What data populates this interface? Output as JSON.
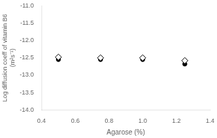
{
  "chart_data": {
    "type": "scatter",
    "title": "",
    "xlabel": "Agarose (%)",
    "ylabel": "Log diffusion coeff of vitamin B6\n(m²s⁻¹)",
    "x": [
      0.5,
      0.75,
      1.0,
      1.25
    ],
    "series": [
      {
        "color": "#000000",
        "marker": "diamond-open",
        "values": [
          -12.48,
          -12.5,
          -12.5,
          -12.58
        ]
      },
      {
        "color": "#000000",
        "marker": "circle",
        "values": [
          -12.55,
          -12.55,
          -12.55,
          -12.68
        ]
      }
    ],
    "xlim": [
      0.4,
      1.4
    ],
    "ylim": [
      -14.0,
      -11.0
    ],
    "xticks": [
      0.4,
      0.6,
      0.8,
      {
        "value": 1.0,
        "label": "1.0"
      },
      1.2,
      1.4
    ],
    "yticks": [
      {
        "value": -14.0,
        "label": "-14.0"
      },
      -13.5,
      {
        "value": -13.0,
        "label": "-13.0"
      },
      -12.5,
      {
        "value": -12.0,
        "label": "-12.0"
      },
      -11.5,
      {
        "value": -11.0,
        "label": "-11.0"
      }
    ],
    "grid": false,
    "background": "#ffffff"
  }
}
